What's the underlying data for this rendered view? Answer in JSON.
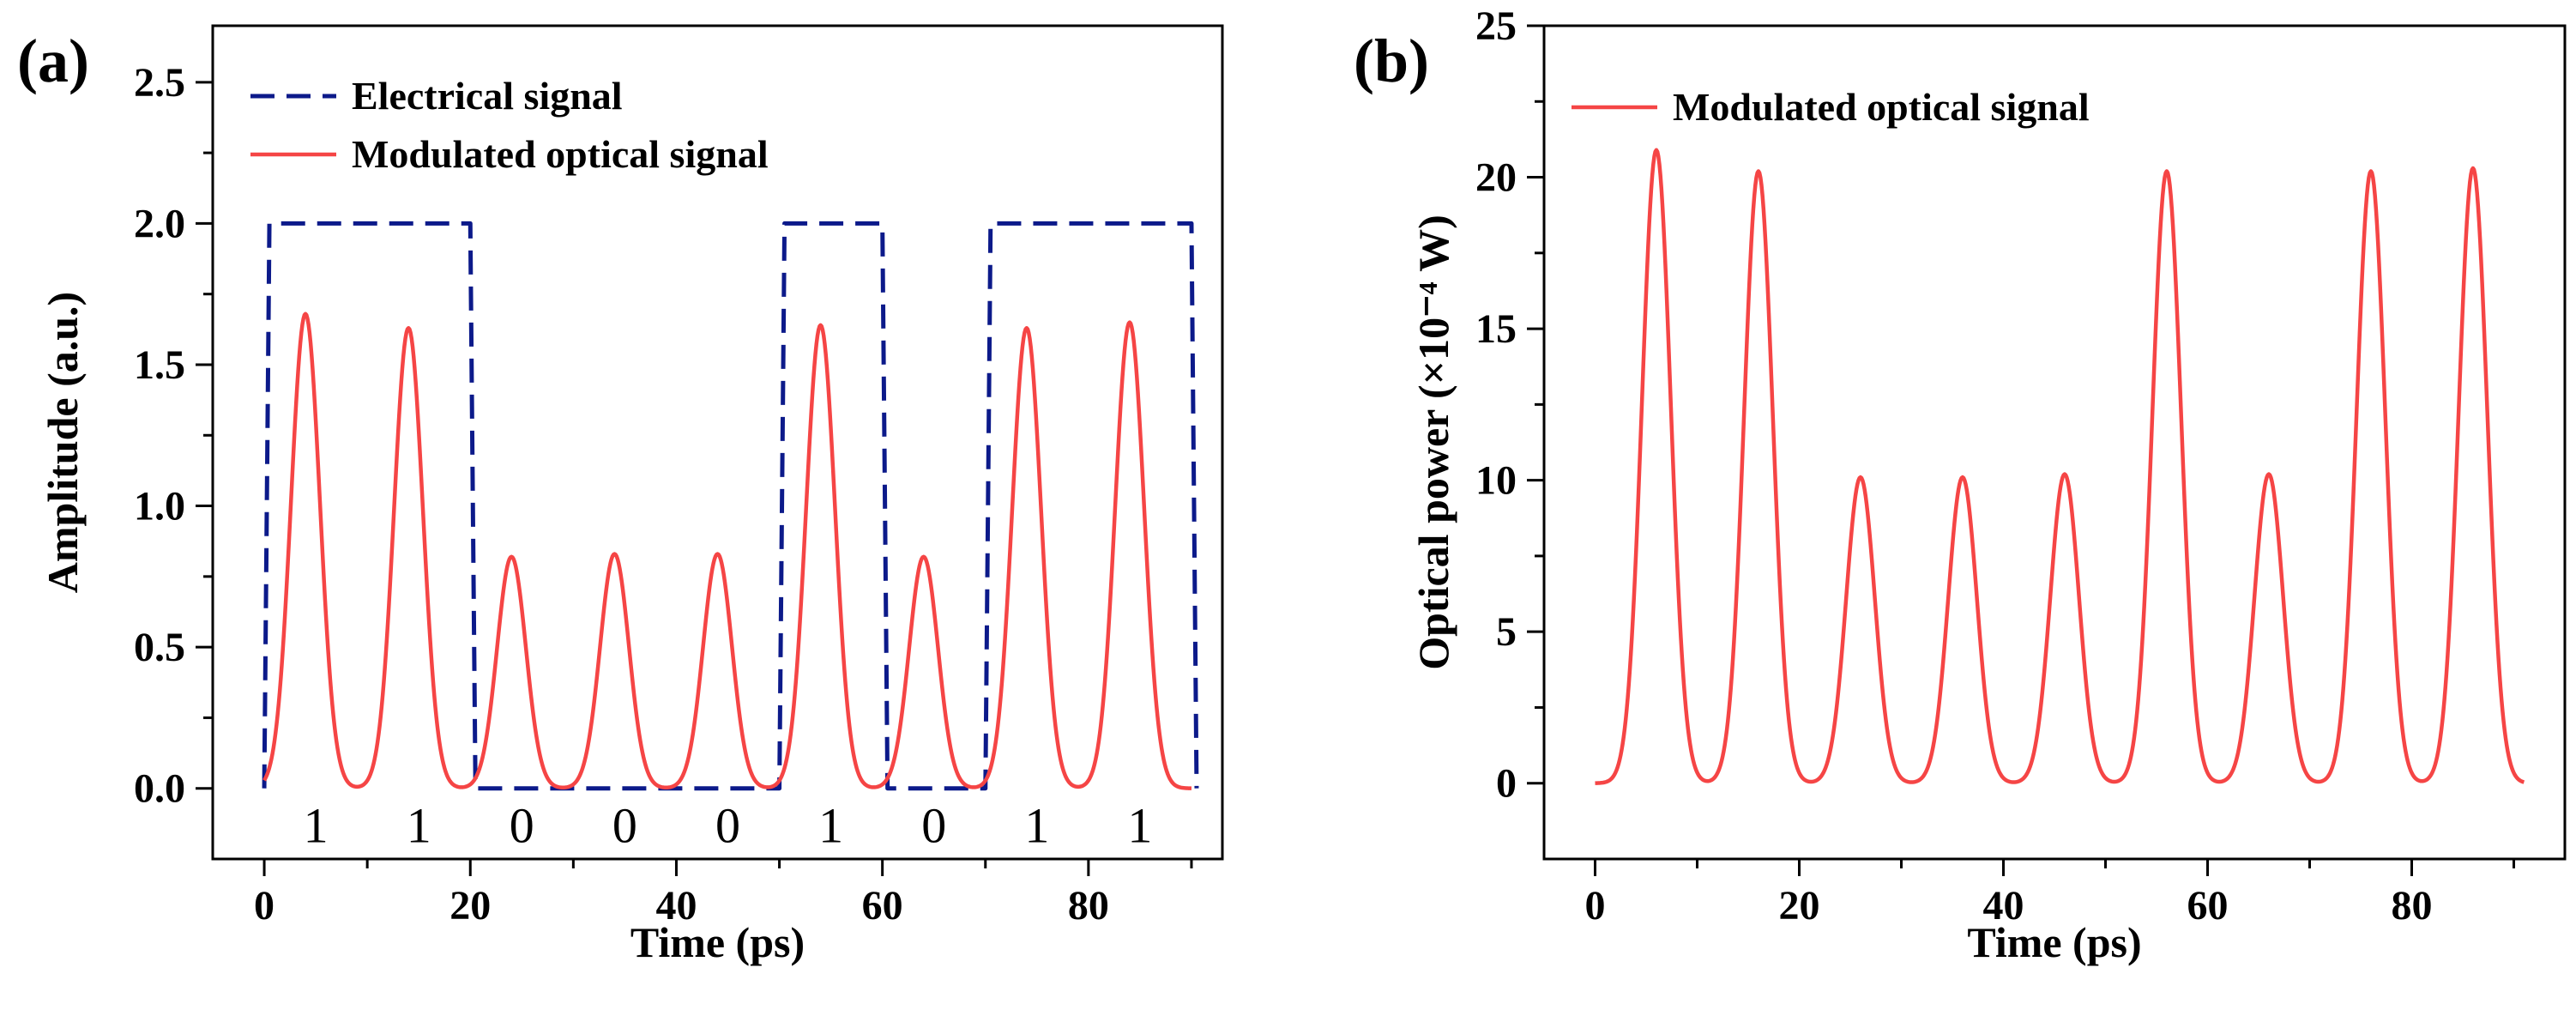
{
  "chart_data": [
    {
      "panel": "(a)",
      "type": "line",
      "xlabel": "Time (ps)",
      "ylabel": "Amplitude (a.u.)",
      "xlim": [
        -5,
        93
      ],
      "ylim": [
        -0.25,
        2.7
      ],
      "xticks": [
        0,
        20,
        40,
        60,
        80
      ],
      "yticks": [
        0.0,
        0.5,
        1.0,
        1.5,
        2.0,
        2.5
      ],
      "xtick_labels": [
        "0",
        "20",
        "40",
        "60",
        "80"
      ],
      "ytick_labels": [
        "0.0",
        "0.5",
        "1.0",
        "1.5",
        "2.0",
        "2.5"
      ],
      "legend_position": "top-left",
      "series": [
        {
          "name": "Electrical signal",
          "style": "dashed",
          "color": "#0c1a8a",
          "x": [
            0,
            0.5,
            20,
            20.5,
            50,
            50.5,
            60,
            60.5,
            70,
            70.5,
            90,
            90.5
          ],
          "y": [
            0,
            2,
            2,
            0,
            0,
            2,
            2,
            0,
            0,
            2,
            2,
            0
          ]
        },
        {
          "name": "Modulated optical signal",
          "style": "solid",
          "color": "#f54545",
          "pulse_centers": [
            4,
            14,
            24,
            34,
            44,
            54,
            64,
            74,
            84
          ],
          "pulse_peaks": [
            1.68,
            1.63,
            0.82,
            0.83,
            0.83,
            1.64,
            0.82,
            1.63,
            1.65
          ],
          "pulse_width": 1.4,
          "x_range": [
            0,
            90
          ]
        }
      ],
      "bit_labels": {
        "x": [
          5,
          15,
          25,
          35,
          45,
          55,
          65,
          75,
          85
        ],
        "text": [
          "1",
          "1",
          "0",
          "0",
          "0",
          "1",
          "0",
          "1",
          "1"
        ],
        "y": -0.13
      }
    },
    {
      "panel": "(b)",
      "type": "line",
      "xlabel": "Time (ps)",
      "ylabel": "Optical power (×10⁻⁴ W)",
      "xlim": [
        -5,
        95
      ],
      "ylim": [
        -2.5,
        25
      ],
      "xticks": [
        0,
        20,
        40,
        60,
        80
      ],
      "yticks": [
        0,
        5,
        10,
        15,
        20,
        25
      ],
      "xtick_labels": [
        "0",
        "20",
        "40",
        "60",
        "80"
      ],
      "ytick_labels": [
        "0",
        "5",
        "10",
        "15",
        "20",
        "25"
      ],
      "legend_position": "top-left",
      "series": [
        {
          "name": "Modulated optical signal",
          "style": "solid",
          "color": "#f54545",
          "pulse_centers": [
            6,
            16,
            26,
            36,
            46,
            56,
            66,
            76,
            86
          ],
          "pulse_peaks": [
            20.9,
            20.2,
            10.1,
            10.1,
            10.2,
            20.2,
            10.2,
            20.2,
            20.3
          ],
          "pulse_width": 1.4,
          "x_range": [
            0,
            91
          ]
        }
      ]
    }
  ]
}
